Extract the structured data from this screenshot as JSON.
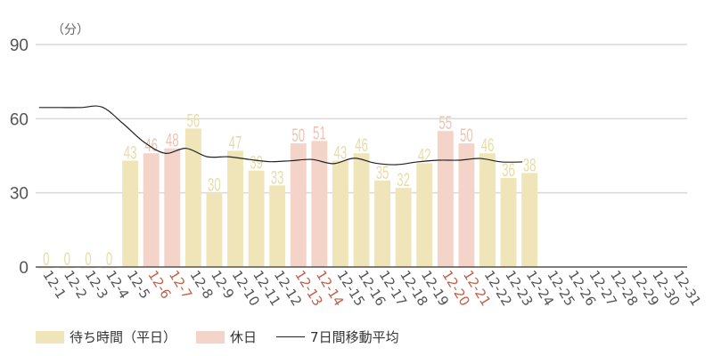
{
  "chart_data": {
    "type": "bar",
    "title": "",
    "unit_label": "（分）",
    "xlabel": "",
    "ylabel": "（分）",
    "ylim": [
      0,
      90
    ],
    "yticks": [
      0,
      30,
      60,
      90
    ],
    "grid": true,
    "legend_position": "bottom-left",
    "categories": [
      "12-1",
      "12-2",
      "12-3",
      "12-4",
      "12-5",
      "12-6",
      "12-7",
      "12-8",
      "12-9",
      "12-10",
      "12-11",
      "12-12",
      "12-13",
      "12-14",
      "12-15",
      "12-16",
      "12-17",
      "12-18",
      "12-19",
      "12-20",
      "12-21",
      "12-22",
      "12-23",
      "12-24",
      "12-25",
      "12-26",
      "12-27",
      "12-28",
      "12-29",
      "12-30",
      "12-31"
    ],
    "holidays": [
      "12-6",
      "12-7",
      "12-13",
      "12-14",
      "12-20",
      "12-21"
    ],
    "series": [
      {
        "name": "待ち時間（平日）",
        "type": "bar",
        "color": "#f0e5b8",
        "values": [
          0,
          0,
          0,
          0,
          43,
          null,
          null,
          56,
          30,
          47,
          39,
          33,
          null,
          null,
          43,
          46,
          35,
          32,
          42,
          null,
          null,
          46,
          36,
          38,
          null,
          null,
          null,
          null,
          null,
          null,
          null
        ]
      },
      {
        "name": "休日",
        "type": "bar",
        "color": "#f4d3c8",
        "values": [
          null,
          null,
          null,
          null,
          null,
          46,
          48,
          null,
          null,
          null,
          null,
          null,
          50,
          51,
          null,
          null,
          null,
          null,
          null,
          55,
          50,
          null,
          null,
          null,
          null,
          null,
          null,
          null,
          null,
          null,
          null
        ]
      },
      {
        "name": "7日間移動平均",
        "type": "line",
        "color": "#222222",
        "values": [
          64.5,
          64.5,
          64.5,
          64.7,
          58,
          50.5,
          46,
          48,
          44.6,
          44.6,
          43.5,
          42.6,
          43,
          43.5,
          41.8,
          44,
          42,
          41.4,
          42.5,
          43.2,
          43.2,
          43.9,
          42.5,
          42.5,
          null,
          null,
          null,
          null,
          null,
          null,
          null
        ]
      }
    ]
  },
  "legend": {
    "items": [
      {
        "label": "待ち時間（平日）",
        "kind": "swatch",
        "color": "#f0e5b8"
      },
      {
        "label": "休日",
        "kind": "swatch",
        "color": "#f4d3c8"
      },
      {
        "label": "7日間移動平均",
        "kind": "line",
        "color": "#222222"
      }
    ]
  },
  "colors": {
    "weekday_bar": "#f0e5b8",
    "holiday_bar": "#f4d3c8",
    "weekday_label": "#eadca6",
    "holiday_label": "#efc3b2",
    "tick_normal": "#555555",
    "tick_holiday": "#c0604a",
    "line": "#222222"
  }
}
